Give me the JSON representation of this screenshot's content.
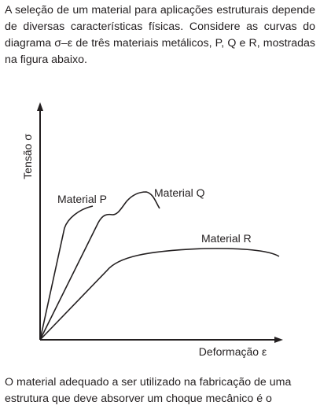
{
  "question": {
    "intro_text": "A seleção de um material para aplicações estruturais depende de diversas características físicas. Considere as curvas do diagrama σ–ε de três materiais metálicos, P, Q e R, mostradas na figura abaixo.",
    "outro_text": "O material adequado a ser utilizado na fabricação de uma estrutura que deve absorver um choque mecânico é o"
  },
  "diagram": {
    "y_axis_label": "Tensão σ",
    "x_axis_label": "Deformação ε",
    "curves": [
      {
        "id": "P",
        "label": "Material P"
      },
      {
        "id": "Q",
        "label": "Material Q"
      },
      {
        "id": "R",
        "label": "Material R"
      }
    ],
    "line_color": "#231f20"
  }
}
